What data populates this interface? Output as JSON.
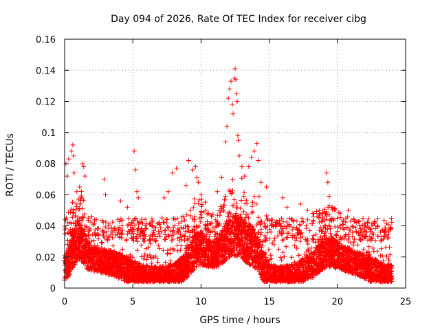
{
  "chart_data": {
    "type": "scatter",
    "title": "Day 094 of 2026, Rate Of TEC Index for receiver cibg",
    "xlabel": "GPS time / hours",
    "ylabel": "ROTI / TECUs",
    "xlim": [
      0,
      25
    ],
    "ylim": [
      0,
      0.16
    ],
    "x_ticks": [
      0,
      5,
      10,
      15,
      20,
      25
    ],
    "y_ticks": [
      0,
      0.02,
      0.04,
      0.06,
      0.08,
      0.1,
      0.12,
      0.14,
      0.16
    ],
    "x_tick_labels": [
      "0",
      "5",
      "10",
      "15",
      "20",
      "25"
    ],
    "y_tick_labels": [
      "0",
      "0.02",
      "0.04",
      "0.06",
      "0.08",
      "0.1",
      "0.12",
      "0.14",
      "0.16"
    ],
    "grid": true,
    "marker": "plus",
    "marker_color": "#ff0000",
    "series": [
      {
        "name": "ROTI",
        "description": "dense cloud of points, baseline 0.005-0.035 TECU/min across 0-24 h",
        "values": [
          [
            0.1,
            0.08
          ],
          [
            0.2,
            0.072
          ],
          [
            0.3,
            0.083
          ],
          [
            0.5,
            0.088
          ],
          [
            0.6,
            0.092
          ],
          [
            0.65,
            0.085
          ],
          [
            0.7,
            0.074
          ],
          [
            0.9,
            0.062
          ],
          [
            1.1,
            0.065
          ],
          [
            1.3,
            0.08
          ],
          [
            1.4,
            0.078
          ],
          [
            1.5,
            0.072
          ],
          [
            1.2,
            0.058
          ],
          [
            2.9,
            0.07
          ],
          [
            3.0,
            0.06
          ],
          [
            4.1,
            0.056
          ],
          [
            4.6,
            0.052
          ],
          [
            5.1,
            0.088
          ],
          [
            5.2,
            0.076
          ],
          [
            5.3,
            0.062
          ],
          [
            5.4,
            0.058
          ],
          [
            7.3,
            0.058
          ],
          [
            7.6,
            0.062
          ],
          [
            7.9,
            0.074
          ],
          [
            8.2,
            0.077
          ],
          [
            8.9,
            0.066
          ],
          [
            9.1,
            0.082
          ],
          [
            9.4,
            0.076
          ],
          [
            9.6,
            0.078
          ],
          [
            9.7,
            0.071
          ],
          [
            9.8,
            0.068
          ],
          [
            10.0,
            0.06
          ],
          [
            11.2,
            0.062
          ],
          [
            11.5,
            0.071
          ],
          [
            11.8,
            0.094
          ],
          [
            11.9,
            0.104
          ],
          [
            12.0,
            0.122
          ],
          [
            12.1,
            0.128
          ],
          [
            12.2,
            0.133
          ],
          [
            12.3,
            0.118
          ],
          [
            12.35,
            0.112
          ],
          [
            12.45,
            0.135
          ],
          [
            12.5,
            0.141
          ],
          [
            12.55,
            0.134
          ],
          [
            12.6,
            0.125
          ],
          [
            12.65,
            0.12
          ],
          [
            12.7,
            0.098
          ],
          [
            12.75,
            0.095
          ],
          [
            12.8,
            0.085
          ],
          [
            13.0,
            0.078
          ],
          [
            13.2,
            0.072
          ],
          [
            13.5,
            0.078
          ],
          [
            13.7,
            0.084
          ],
          [
            13.9,
            0.088
          ],
          [
            14.1,
            0.093
          ],
          [
            14.2,
            0.082
          ],
          [
            14.4,
            0.068
          ],
          [
            14.8,
            0.065
          ],
          [
            16.0,
            0.058
          ],
          [
            16.3,
            0.052
          ],
          [
            17.3,
            0.054
          ],
          [
            17.8,
            0.05
          ],
          [
            18.2,
            0.048
          ],
          [
            18.5,
            0.046
          ],
          [
            19.2,
            0.074
          ],
          [
            19.3,
            0.068
          ],
          [
            19.4,
            0.059
          ],
          [
            19.6,
            0.052
          ],
          [
            20.2,
            0.048
          ],
          [
            20.8,
            0.05
          ],
          [
            21.2,
            0.044
          ],
          [
            22.2,
            0.042
          ],
          [
            22.6,
            0.04
          ],
          [
            23.9,
            0.038
          ]
        ]
      }
    ]
  }
}
